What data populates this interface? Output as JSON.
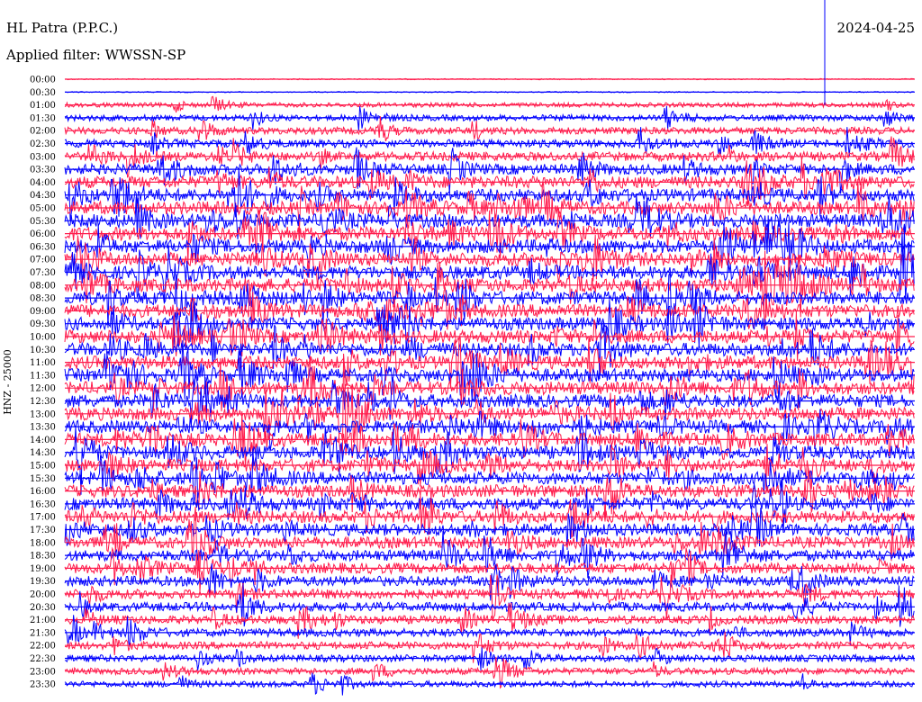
{
  "header": {
    "station": "HL Patra (P.P.C.)",
    "filter": "Applied filter: WWSSN-SP",
    "date": "2024-04-25"
  },
  "chart_data": {
    "type": "line",
    "title": "HL Patra (P.P.C.)",
    "ylabel": "HNZ - 25000",
    "date": "2024-04-25",
    "row_labels": [
      "00:00",
      "00:30",
      "01:00",
      "01:30",
      "02:00",
      "02:30",
      "03:00",
      "03:30",
      "04:00",
      "04:30",
      "05:00",
      "05:30",
      "06:00",
      "06:30",
      "07:00",
      "07:30",
      "08:00",
      "08:30",
      "09:00",
      "09:30",
      "10:00",
      "10:30",
      "11:00",
      "11:30",
      "12:00",
      "12:30",
      "13:00",
      "13:30",
      "14:00",
      "14:30",
      "15:00",
      "15:30",
      "16:00",
      "16:30",
      "17:00",
      "17:30",
      "18:00",
      "18:30",
      "19:00",
      "19:30",
      "20:00",
      "20:30",
      "21:00",
      "21:30",
      "22:00",
      "22:30",
      "23:00",
      "23:30"
    ],
    "series_colors": [
      "#ff1a4b",
      "#0000ff"
    ],
    "row_noise_level": [
      0,
      0,
      0.1,
      0.25,
      0.35,
      0.45,
      0.55,
      0.7,
      0.85,
      0.9,
      0.95,
      1,
      1,
      1,
      1,
      1,
      1,
      1,
      0.95,
      0.95,
      0.95,
      0.95,
      0.95,
      0.95,
      0.95,
      0.95,
      0.95,
      0.95,
      0.95,
      0.95,
      0.9,
      0.9,
      0.9,
      0.9,
      0.85,
      0.85,
      0.8,
      0.75,
      0.7,
      0.65,
      0.6,
      0.55,
      0.5,
      0.45,
      0.4,
      0.35,
      0.3,
      0.25
    ]
  }
}
